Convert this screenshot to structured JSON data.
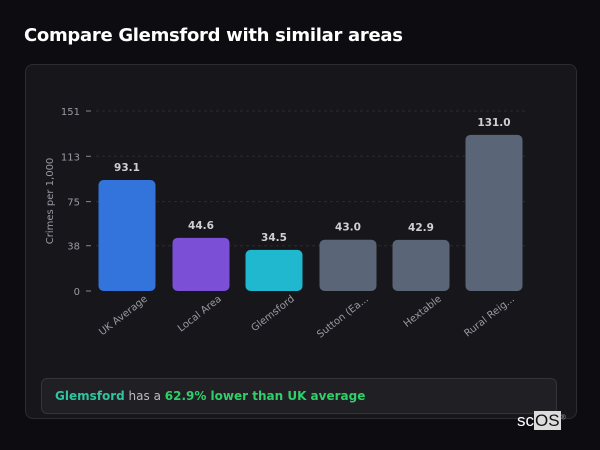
{
  "page": {
    "title": "Compare Glemsford with similar areas"
  },
  "summary": {
    "place": "Glemsford",
    "middle": " has a ",
    "highlight": "62.9% lower than UK average"
  },
  "logo": {
    "text": "scOS"
  },
  "chart_data": {
    "type": "bar",
    "title": "",
    "xlabel": "",
    "ylabel": "Crimes per 1,000",
    "ylim": [
      0,
      151
    ],
    "yticks": [
      0,
      38,
      75,
      113,
      151
    ],
    "grid": true,
    "categories": [
      "UK Average",
      "Local Area",
      "Glemsford",
      "Sutton (Ea...",
      "Hextable",
      "Rural Reig..."
    ],
    "values": [
      93.1,
      44.6,
      34.5,
      43.0,
      42.9,
      131.0
    ],
    "data_labels": [
      "93.1",
      "44.6",
      "34.5",
      "43.0",
      "42.9",
      "131.0"
    ],
    "colors": [
      "#3273dc",
      "#7b4fd6",
      "#1fb8cf",
      "#5a6578",
      "#5a6578",
      "#5a6578"
    ]
  }
}
